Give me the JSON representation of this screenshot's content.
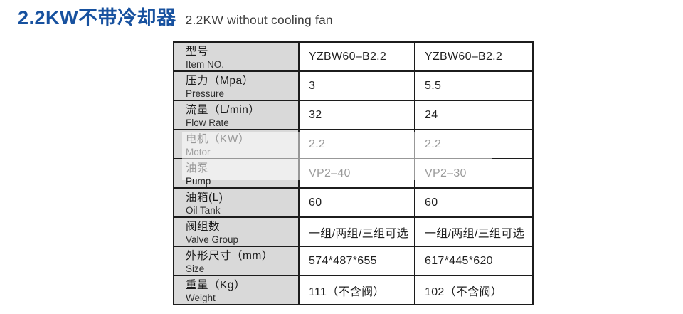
{
  "page": {
    "title_zh": "2.2KW不带冷却器",
    "title_en": "2.2KW without cooling fan"
  },
  "colors": {
    "title_blue": "#17519f",
    "table_border": "#1c1c1c",
    "label_cell_bg": "#d9d9d9",
    "faded_text": "#9a9a9a",
    "faded_overlay": "rgba(255,255,255,0.55)"
  },
  "table": {
    "column_count": 3,
    "rows": [
      {
        "label_zh": "型号",
        "label_en": "Item NO.",
        "values": [
          "YZBW60–B2.2",
          "YZBW60–B2.2"
        ],
        "faded": false
      },
      {
        "label_zh": "压力（Mpa）",
        "label_en": "Pressure",
        "values": [
          "3",
          "5.5"
        ],
        "faded": false
      },
      {
        "label_zh": "流量（L/min）",
        "label_en": "Flow Rate",
        "values": [
          "32",
          "24"
        ],
        "faded": false
      },
      {
        "label_zh": "电机（KW）",
        "label_en": "Motor",
        "values": [
          "2.2",
          "2.2"
        ],
        "faded": true
      },
      {
        "label_zh": "油泵",
        "label_en": "Pump",
        "values": [
          "VP2–40",
          "VP2–30"
        ],
        "faded": true
      },
      {
        "label_zh": "油箱(L)",
        "label_en": "Oil Tank",
        "values": [
          "60",
          "60"
        ],
        "faded": false
      },
      {
        "label_zh": "阀组数",
        "label_en": "Valve Group",
        "values": [
          "一组/两组/三组可选",
          "一组/两组/三组可选"
        ],
        "faded": false
      },
      {
        "label_zh": "外形尺寸（mm）",
        "label_en": "Size",
        "values": [
          "574*487*655",
          "617*445*620"
        ],
        "faded": false
      },
      {
        "label_zh": "重量（Kg）",
        "label_en": "Weight",
        "values": [
          "111（不含阀）",
          "102（不含阀）"
        ],
        "faded": false
      }
    ]
  }
}
